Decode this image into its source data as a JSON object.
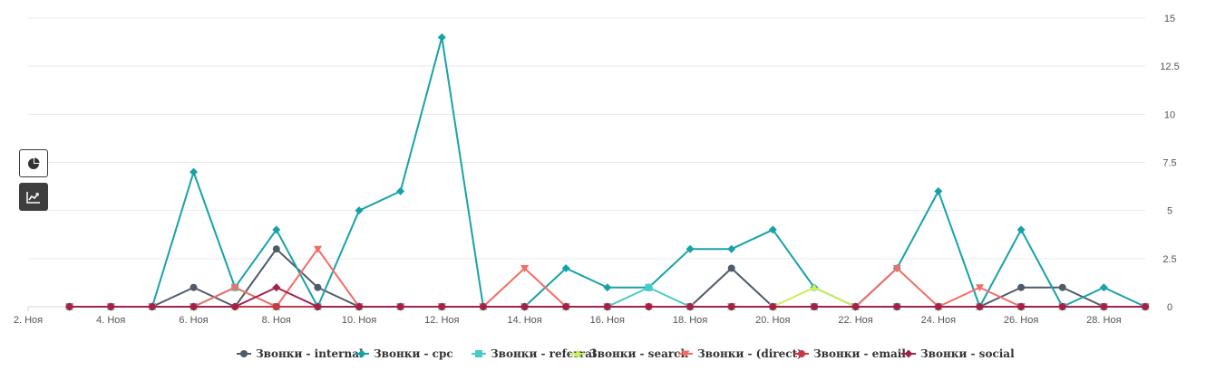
{
  "controls": {
    "pie_icon": "pie-chart-icon",
    "line_icon": "line-chart-icon"
  },
  "chart_data": {
    "type": "line",
    "x": [
      "2. Ноя",
      "3. Ноя",
      "4. Ноя",
      "5. Ноя",
      "6. Ноя",
      "7. Ноя",
      "8. Ноя",
      "9. Ноя",
      "10. Ноя",
      "11. Ноя",
      "12. Ноя",
      "13. Ноя",
      "14. Ноя",
      "15. Ноя",
      "16. Ноя",
      "17. Ноя",
      "18. Ноя",
      "19. Ноя",
      "20. Ноя",
      "21. Ноя",
      "22. Ноя",
      "23. Ноя",
      "24. Ноя",
      "25. Ноя",
      "26. Ноя",
      "27. Ноя",
      "28. Ноя",
      "29. Ноя"
    ],
    "x_tick_labels": [
      "2. Ноя",
      "4. Ноя",
      "6. Ноя",
      "8. Ноя",
      "10. Ноя",
      "12. Ноя",
      "14. Ноя",
      "16. Ноя",
      "18. Ноя",
      "20. Ноя",
      "22. Ноя",
      "24. Ноя",
      "26. Ноя",
      "28. Ноя"
    ],
    "y_tick_labels": [
      "0",
      "2.5",
      "5",
      "7.5",
      "10",
      "12.5",
      "15"
    ],
    "ylim": [
      0,
      15
    ],
    "y_axis_side": "right",
    "grid": true,
    "legend_position": "bottom",
    "series": [
      {
        "name": "Звонки - internal",
        "color": "#4f5a6a",
        "marker": "circle",
        "values": [
          null,
          0,
          0,
          0,
          1,
          0,
          3,
          1,
          0,
          0,
          0,
          0,
          0,
          0,
          0,
          0,
          0,
          2,
          0,
          0,
          0,
          0,
          0,
          0,
          1,
          1,
          0,
          0
        ]
      },
      {
        "name": "Звонки - cpc",
        "color": "#17a2a8",
        "marker": "diamond",
        "values": [
          null,
          0,
          0,
          0,
          7,
          1,
          4,
          0,
          5,
          6,
          14,
          0,
          0,
          2,
          1,
          1,
          3,
          3,
          4,
          1,
          0,
          2,
          6,
          0,
          4,
          0,
          1,
          0
        ]
      },
      {
        "name": "Звонки - referral",
        "color": "#45ccc4",
        "marker": "square",
        "values": [
          null,
          0,
          0,
          0,
          0,
          1,
          0,
          0,
          0,
          0,
          0,
          0,
          0,
          0,
          0,
          1,
          0,
          0,
          0,
          0,
          0,
          0,
          0,
          0,
          0,
          0,
          0,
          0
        ]
      },
      {
        "name": "Звонки - search",
        "color": "#c8f05a",
        "marker": "triangle",
        "values": [
          null,
          0,
          0,
          0,
          0,
          0,
          0,
          0,
          0,
          0,
          0,
          0,
          0,
          0,
          0,
          0,
          0,
          0,
          0,
          1,
          0,
          0,
          0,
          0,
          0,
          0,
          0,
          0
        ]
      },
      {
        "name": "Звонки - (direct)",
        "color": "#f36d65",
        "marker": "triangle-down",
        "values": [
          null,
          0,
          0,
          0,
          0,
          1,
          0,
          3,
          0,
          0,
          0,
          0,
          2,
          0,
          0,
          0,
          0,
          0,
          0,
          0,
          0,
          2,
          0,
          1,
          0,
          0,
          0,
          0
        ]
      },
      {
        "name": "Звонки - email",
        "color": "#c9374a",
        "marker": "circle",
        "values": [
          null,
          0,
          0,
          0,
          0,
          0,
          0,
          0,
          0,
          0,
          0,
          0,
          0,
          0,
          0,
          0,
          0,
          0,
          0,
          0,
          0,
          0,
          0,
          0,
          0,
          0,
          0,
          0
        ]
      },
      {
        "name": "Звонки - social",
        "color": "#a0204e",
        "marker": "diamond",
        "values": [
          null,
          0,
          0,
          0,
          0,
          0,
          1,
          0,
          0,
          0,
          0,
          0,
          0,
          0,
          0,
          0,
          0,
          0,
          0,
          0,
          0,
          0,
          0,
          0,
          0,
          0,
          0,
          0
        ]
      }
    ]
  }
}
